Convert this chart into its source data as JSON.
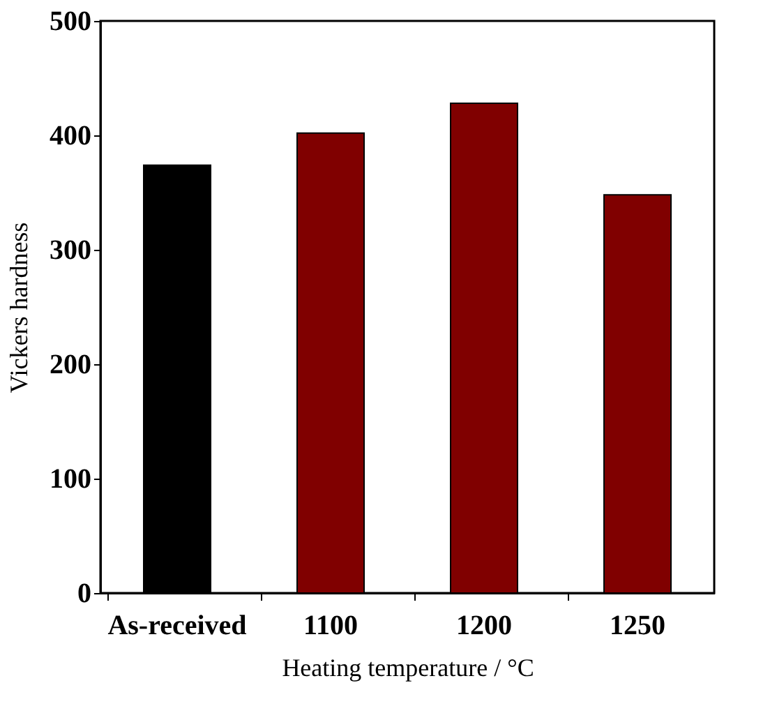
{
  "chart_data": {
    "type": "bar",
    "xlabel": "Heating temperature / °C",
    "ylabel": "Vickers hardness",
    "categories": [
      "As-received",
      "1100",
      "1200",
      "1250"
    ],
    "values": [
      374,
      402,
      428,
      348
    ],
    "colors": [
      "#000000",
      "#800000",
      "#800000",
      "#800000"
    ],
    "ylim": [
      0,
      500
    ],
    "yticks": [
      0,
      100,
      200,
      300,
      400,
      500
    ],
    "grid": false
  }
}
